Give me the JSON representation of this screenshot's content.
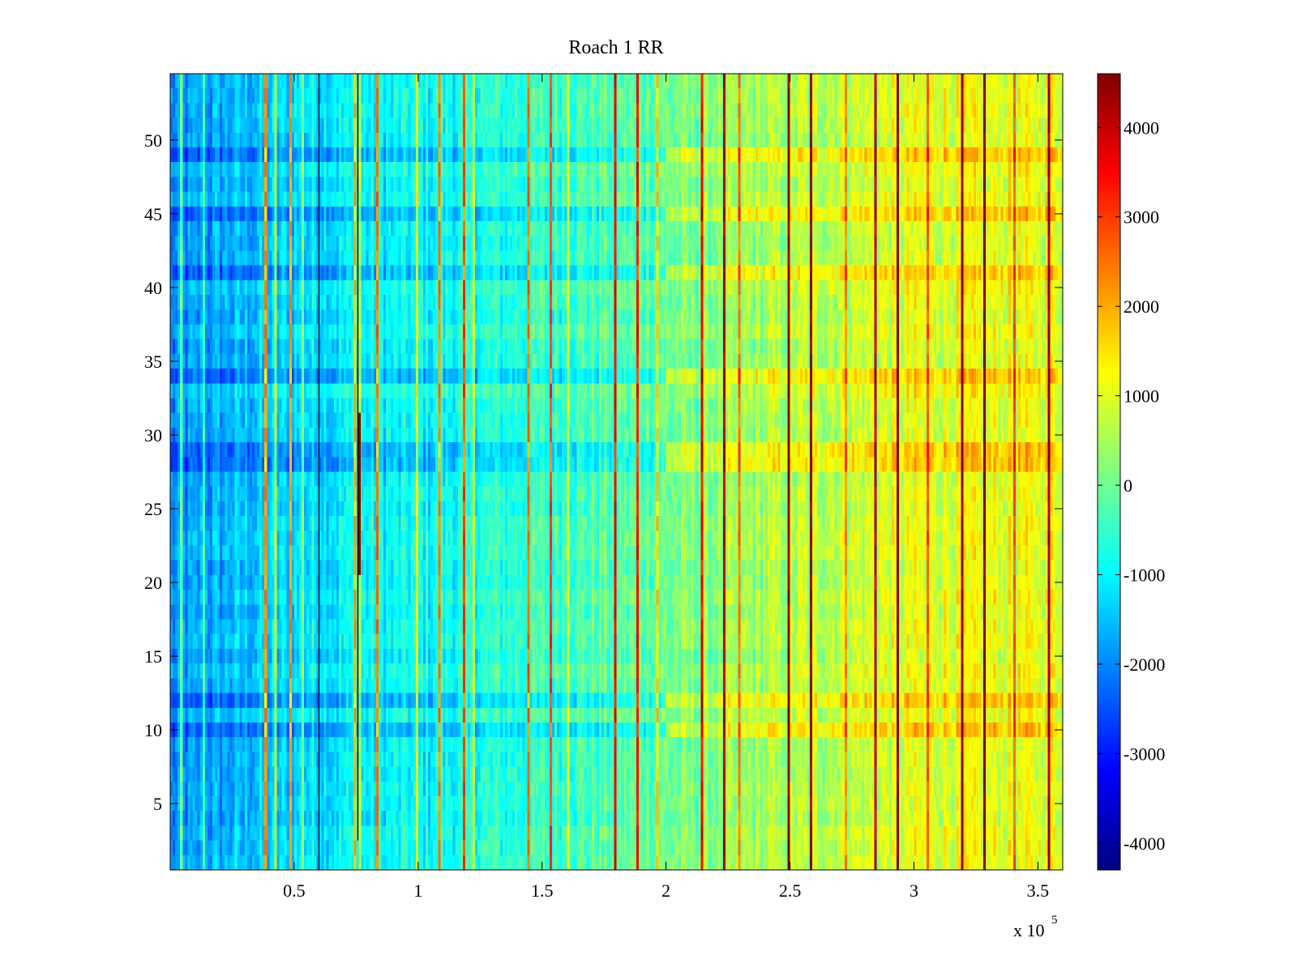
{
  "chart_data": {
    "type": "heatmap",
    "title": "Roach 1 RR",
    "xlabel": "",
    "ylabel": "",
    "x_exponent_label": "x 10",
    "x_exponent_power": "5",
    "xlim": [
      0,
      3.6
    ],
    "ylim": [
      0.5,
      54.5
    ],
    "rows": 54,
    "columns": 360,
    "x_ticks": [
      0.5,
      1,
      1.5,
      2,
      2.5,
      3,
      3.5
    ],
    "x_tick_labels": [
      "0.5",
      "1",
      "1.5",
      "2",
      "2.5",
      "3",
      "3.5"
    ],
    "y_ticks": [
      5,
      10,
      15,
      20,
      25,
      30,
      35,
      40,
      45,
      50
    ],
    "y_tick_labels": [
      "5",
      "10",
      "15",
      "20",
      "25",
      "30",
      "35",
      "40",
      "45",
      "50"
    ],
    "colorbar": {
      "colormap": "jet",
      "range": [
        -4300,
        4600
      ],
      "ticks": [
        -4000,
        -3000,
        -2000,
        -1000,
        0,
        1000,
        2000,
        3000,
        4000
      ],
      "tick_labels": [
        "-4000",
        "-3000",
        "-2000",
        "-1000",
        "0",
        "1000",
        "2000",
        "3000",
        "4000"
      ]
    },
    "value_trend": {
      "x": [
        0,
        0.3,
        0.6,
        1.0,
        1.5,
        2.0,
        2.5,
        3.0,
        3.6
      ],
      "value": [
        -2000,
        -1500,
        -1100,
        -900,
        -450,
        0,
        600,
        1000,
        1100
      ]
    },
    "dark_rows": [
      10,
      12,
      28,
      29,
      34,
      41,
      45,
      49
    ],
    "bright_rows": [
      19,
      33
    ],
    "red_vertical_stripes_x": [
      0.385,
      0.48,
      0.744,
      0.832,
      1.085,
      1.185,
      1.44,
      1.53,
      1.79,
      1.885,
      2.14,
      2.235,
      2.49,
      2.585,
      2.84,
      2.935,
      3.19,
      3.285,
      3.54
    ],
    "yellow_vertical_stripes_x": [
      0.04,
      0.13,
      0.42,
      0.53,
      0.76,
      0.99,
      1.22,
      1.6,
      1.96,
      2.3,
      2.72,
      3.05,
      3.4
    ],
    "black_vertical_lines": [
      {
        "x": 0.6,
        "y_range": [
          0.5,
          54.5
        ]
      },
      {
        "x": 0.762,
        "y_range": [
          20.5,
          31.5
        ]
      },
      {
        "x": 0.757,
        "y_range": [
          2.5,
          54.5
        ]
      }
    ]
  }
}
